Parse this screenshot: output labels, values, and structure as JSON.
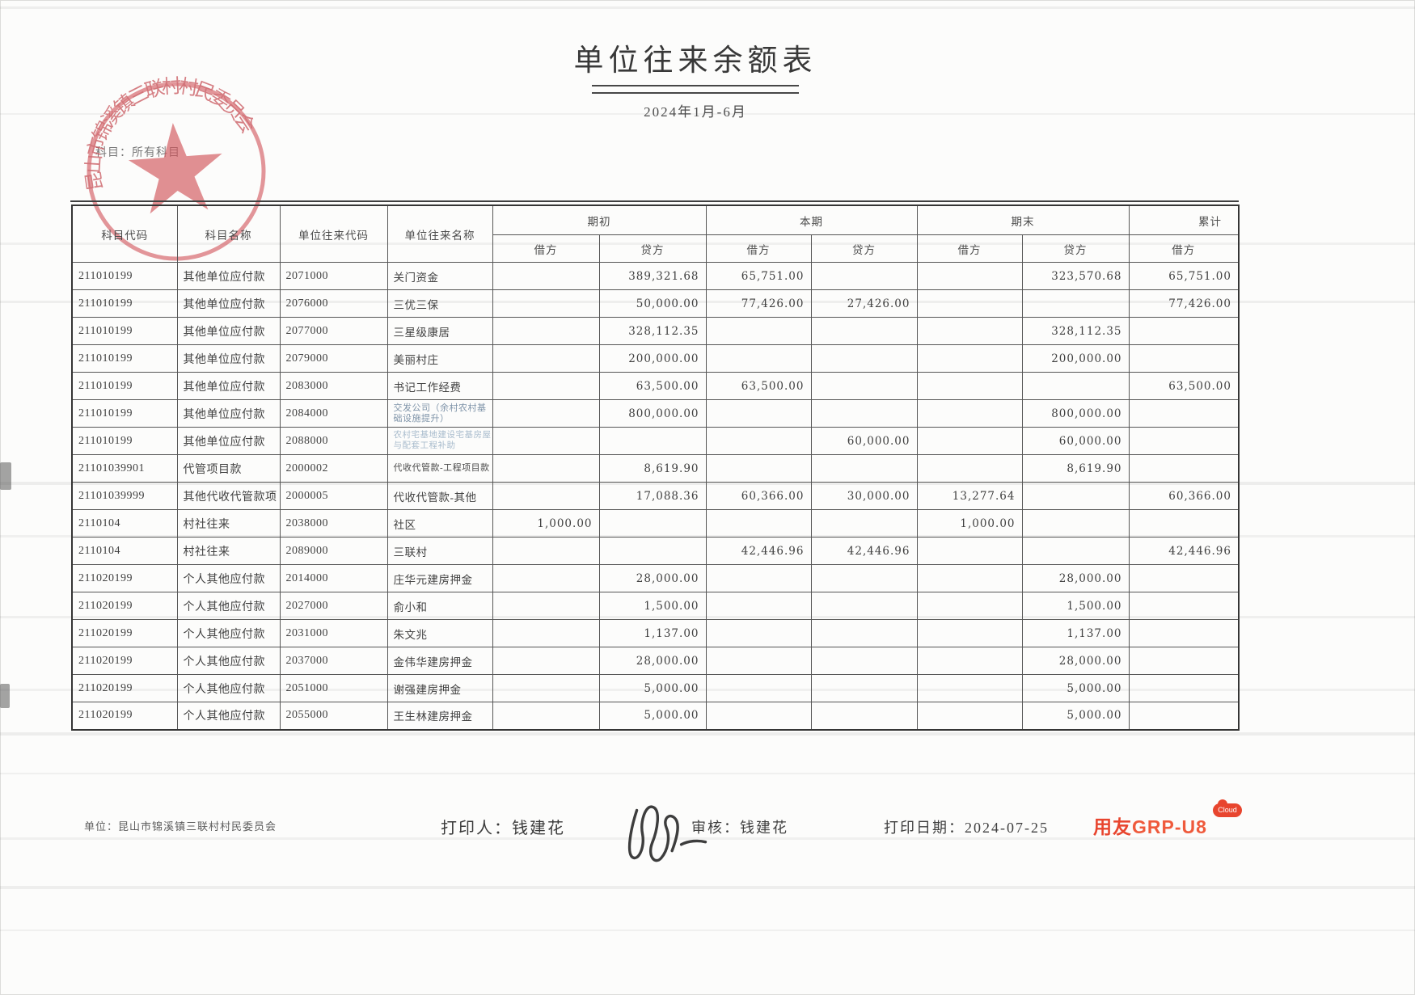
{
  "title": "单位往来余额表",
  "period": "2024年1月-6月",
  "filter_label": "科目：所有科目",
  "stamp_text": "昆山市锦溪镇三联村村民委员会",
  "table": {
    "col_headers": [
      "科目代码",
      "科目名称",
      "单位往来代码",
      "单位往来名称"
    ],
    "groups": [
      {
        "label": "期初",
        "subs": [
          "借方",
          "贷方"
        ]
      },
      {
        "label": "本期",
        "subs": [
          "借方",
          "贷方"
        ]
      },
      {
        "label": "期末",
        "subs": [
          "借方",
          "贷方"
        ]
      },
      {
        "label": "累计",
        "subs": [
          "借方"
        ]
      }
    ],
    "rows": [
      [
        "211010199",
        "其他单位应付款",
        "2071000",
        "关门资金",
        "",
        "389,321.68",
        "65,751.00",
        "",
        "",
        "323,570.68",
        "65,751.00"
      ],
      [
        "211010199",
        "其他单位应付款",
        "2076000",
        "三优三保",
        "",
        "50,000.00",
        "77,426.00",
        "27,426.00",
        "",
        "",
        "77,426.00"
      ],
      [
        "211010199",
        "其他单位应付款",
        "2077000",
        "三星级康居",
        "",
        "328,112.35",
        "",
        "",
        "",
        "328,112.35",
        ""
      ],
      [
        "211010199",
        "其他单位应付款",
        "2079000",
        "美丽村庄",
        "",
        "200,000.00",
        "",
        "",
        "",
        "200,000.00",
        ""
      ],
      [
        "211010199",
        "其他单位应付款",
        "2083000",
        "书记工作经费",
        "",
        "63,500.00",
        "63,500.00",
        "",
        "",
        "",
        "63,500.00"
      ],
      [
        "211010199",
        "其他单位应付款",
        "2084000",
        "交发公司（余村农村基础设施提升）",
        "",
        "800,000.00",
        "",
        "",
        "",
        "800,000.00",
        ""
      ],
      [
        "211010199",
        "其他单位应付款",
        "2088000",
        "农村宅基地建设宅基房屋与配套工程补助",
        "",
        "",
        "",
        "60,000.00",
        "",
        "60,000.00",
        ""
      ],
      [
        "21101039901",
        "代管项目款",
        "2000002",
        "代收代管款-工程项目款",
        "",
        "8,619.90",
        "",
        "",
        "",
        "8,619.90",
        ""
      ],
      [
        "21101039999",
        "其他代收代管款项",
        "2000005",
        "代收代管款-其他",
        "",
        "17,088.36",
        "60,366.00",
        "30,000.00",
        "13,277.64",
        "",
        "60,366.00"
      ],
      [
        "2110104",
        "村社往来",
        "2038000",
        "社区",
        "1,000.00",
        "",
        "",
        "",
        "1,000.00",
        "",
        ""
      ],
      [
        "2110104",
        "村社往来",
        "2089000",
        "三联村",
        "",
        "",
        "42,446.96",
        "42,446.96",
        "",
        "",
        "42,446.96"
      ],
      [
        "211020199",
        "个人其他应付款",
        "2014000",
        "庄华元建房押金",
        "",
        "28,000.00",
        "",
        "",
        "",
        "28,000.00",
        ""
      ],
      [
        "211020199",
        "个人其他应付款",
        "2027000",
        "俞小和",
        "",
        "1,500.00",
        "",
        "",
        "",
        "1,500.00",
        ""
      ],
      [
        "211020199",
        "个人其他应付款",
        "2031000",
        "朱文兆",
        "",
        "1,137.00",
        "",
        "",
        "",
        "1,137.00",
        ""
      ],
      [
        "211020199",
        "个人其他应付款",
        "2037000",
        "金伟华建房押金",
        "",
        "28,000.00",
        "",
        "",
        "",
        "28,000.00",
        ""
      ],
      [
        "211020199",
        "个人其他应付款",
        "2051000",
        "谢强建房押金",
        "",
        "5,000.00",
        "",
        "",
        "",
        "5,000.00",
        ""
      ],
      [
        "211020199",
        "个人其他应付款",
        "2055000",
        "王生林建房押金",
        "",
        "5,000.00",
        "",
        "",
        "",
        "5,000.00",
        ""
      ]
    ]
  },
  "footer": {
    "unit": "单位：昆山市锦溪镇三联村村民委员会",
    "printed_by": "打印人：钱建花",
    "reviewed_by": "审核：钱建花",
    "print_date": "打印日期：2024-07-25"
  },
  "logo": {
    "brand": "用友",
    "product": "GRP-U8",
    "badge": "Cloud"
  },
  "colors": {
    "stamp": "#d2565c",
    "logo": "#e8452e"
  }
}
